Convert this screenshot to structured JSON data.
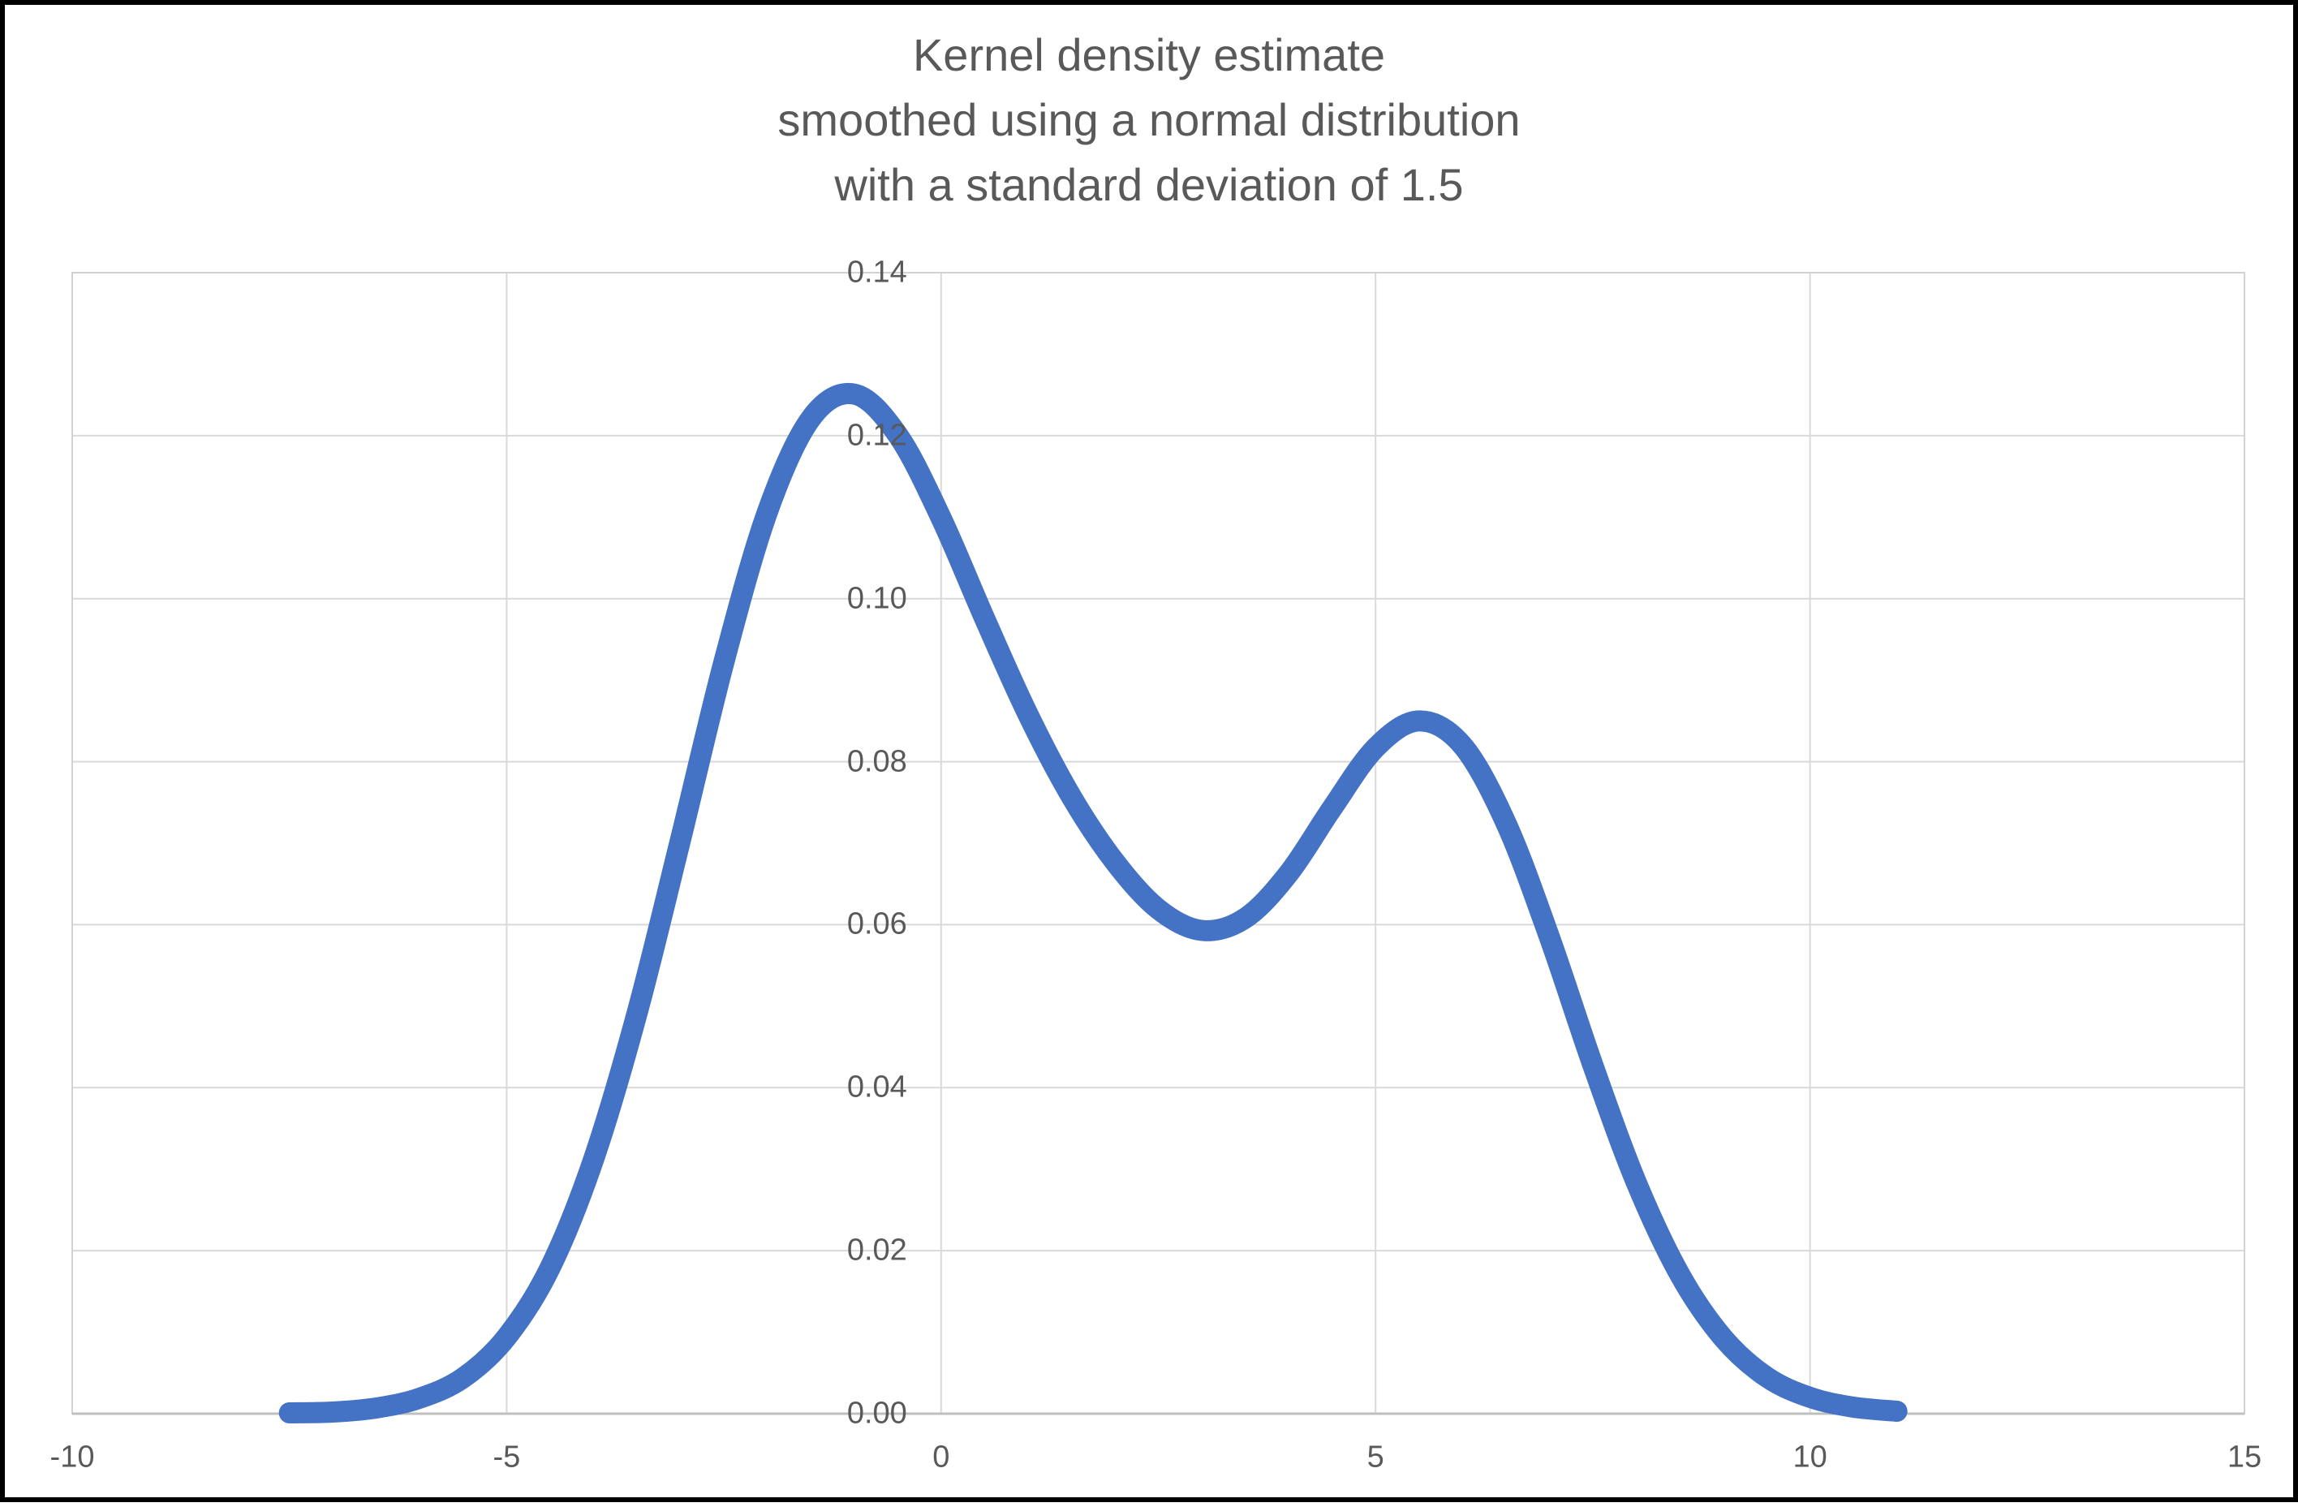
{
  "title": {
    "lines": [
      "Kernel density estimate",
      "smoothed using a normal distribution",
      "with a standard deviation of 1.5"
    ]
  },
  "colors": {
    "line": "#4472C4",
    "gridline": "#D9D9D9",
    "plot_border": "#D2D2D2",
    "axis_line": "#BFBFBF",
    "text": "#595959",
    "frame": "#000000",
    "background": "#FFFFFF"
  },
  "chart_data": {
    "type": "line",
    "title": "Kernel density estimate smoothed using a normal distribution with a standard deviation of 1.5",
    "xlabel": "",
    "ylabel": "",
    "xlim": [
      -10,
      15
    ],
    "ylim": [
      0,
      0.14
    ],
    "grid": true,
    "legend": false,
    "x_ticks": [
      -10,
      -5,
      0,
      5,
      10,
      15
    ],
    "x_tick_labels": [
      "-10",
      "-5",
      "0",
      "5",
      "10",
      "15"
    ],
    "y_ticks": [
      0.0,
      0.02,
      0.04,
      0.06,
      0.08,
      0.1,
      0.12,
      0.14
    ],
    "y_tick_labels": [
      "0.00",
      "0.02",
      "0.04",
      "0.06",
      "0.08",
      "0.10",
      "0.12",
      "0.14"
    ],
    "series": [
      {
        "name": "kernel-density-estimate",
        "x": [
          -7.5,
          -7,
          -6.5,
          -6,
          -5.5,
          -5,
          -4.5,
          -4,
          -3.5,
          -3,
          -2.5,
          -2,
          -1.5,
          -1,
          -0.5,
          0,
          0.5,
          1,
          1.5,
          2,
          2.5,
          3,
          3.5,
          4,
          4.5,
          5,
          5.5,
          6,
          6.5,
          7,
          7.5,
          8,
          8.5,
          9,
          9.5,
          10,
          10.5,
          11
        ],
        "y": [
          0.0001,
          0.0002,
          0.0007,
          0.0019,
          0.0044,
          0.0094,
          0.0179,
          0.0312,
          0.0491,
          0.0704,
          0.0922,
          0.1106,
          0.1221,
          0.1251,
          0.1201,
          0.1099,
          0.0976,
          0.0858,
          0.0757,
          0.0677,
          0.0619,
          0.0593,
          0.0608,
          0.0663,
          0.0743,
          0.0817,
          0.085,
          0.082,
          0.0725,
          0.0585,
          0.0428,
          0.0284,
          0.0171,
          0.0093,
          0.0045,
          0.002,
          0.0008,
          0.0003
        ]
      }
    ]
  }
}
